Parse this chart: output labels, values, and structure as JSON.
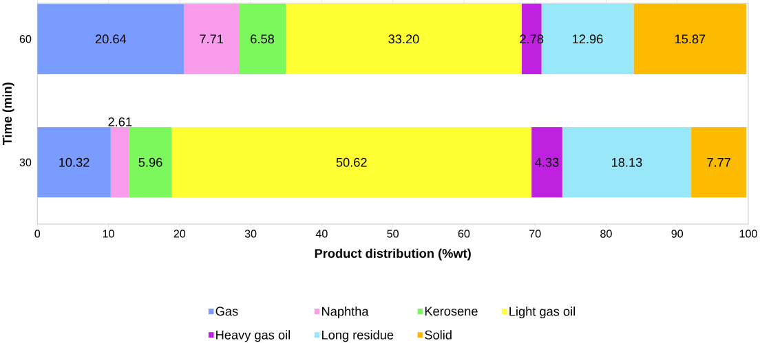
{
  "chart_data": {
    "type": "bar",
    "orientation": "horizontal",
    "stacked": true,
    "xlabel": "Product distribution (%wt)",
    "ylabel": "Time (min)",
    "categories": [
      "60",
      "30"
    ],
    "series": [
      {
        "name": "Gas",
        "color": "#7b9cff",
        "values": [
          20.64,
          10.32
        ],
        "value_labels": [
          "20.64",
          "10.32"
        ]
      },
      {
        "name": "Naphtha",
        "color": "#f99cec",
        "values": [
          7.71,
          2.61
        ],
        "value_labels": [
          "7.71",
          "2.61"
        ]
      },
      {
        "name": "Kerosene",
        "color": "#7cf75c",
        "values": [
          6.58,
          5.96
        ],
        "value_labels": [
          "6.58",
          "5.96"
        ]
      },
      {
        "name": "Light gas oil",
        "color": "#ffff33",
        "values": [
          33.2,
          50.62
        ],
        "value_labels": [
          "33.20",
          "50.62"
        ]
      },
      {
        "name": "Heavy gas oil",
        "color": "#c020e0",
        "values": [
          2.78,
          4.33
        ],
        "value_labels": [
          "2.78",
          "4.33"
        ]
      },
      {
        "name": "Long residue",
        "color": "#99e8fa",
        "values": [
          12.96,
          18.13
        ],
        "value_labels": [
          "12.96",
          "18.13"
        ]
      },
      {
        "name": "Solid",
        "color": "#fcbb00",
        "values": [
          15.87,
          7.77
        ],
        "value_labels": [
          "15.87",
          "7.77"
        ]
      }
    ],
    "xlim": [
      0,
      100
    ],
    "xticks": [
      0,
      10,
      20,
      30,
      40,
      50,
      60,
      70,
      80,
      90,
      100
    ],
    "grid": false,
    "legend": "bottom"
  }
}
